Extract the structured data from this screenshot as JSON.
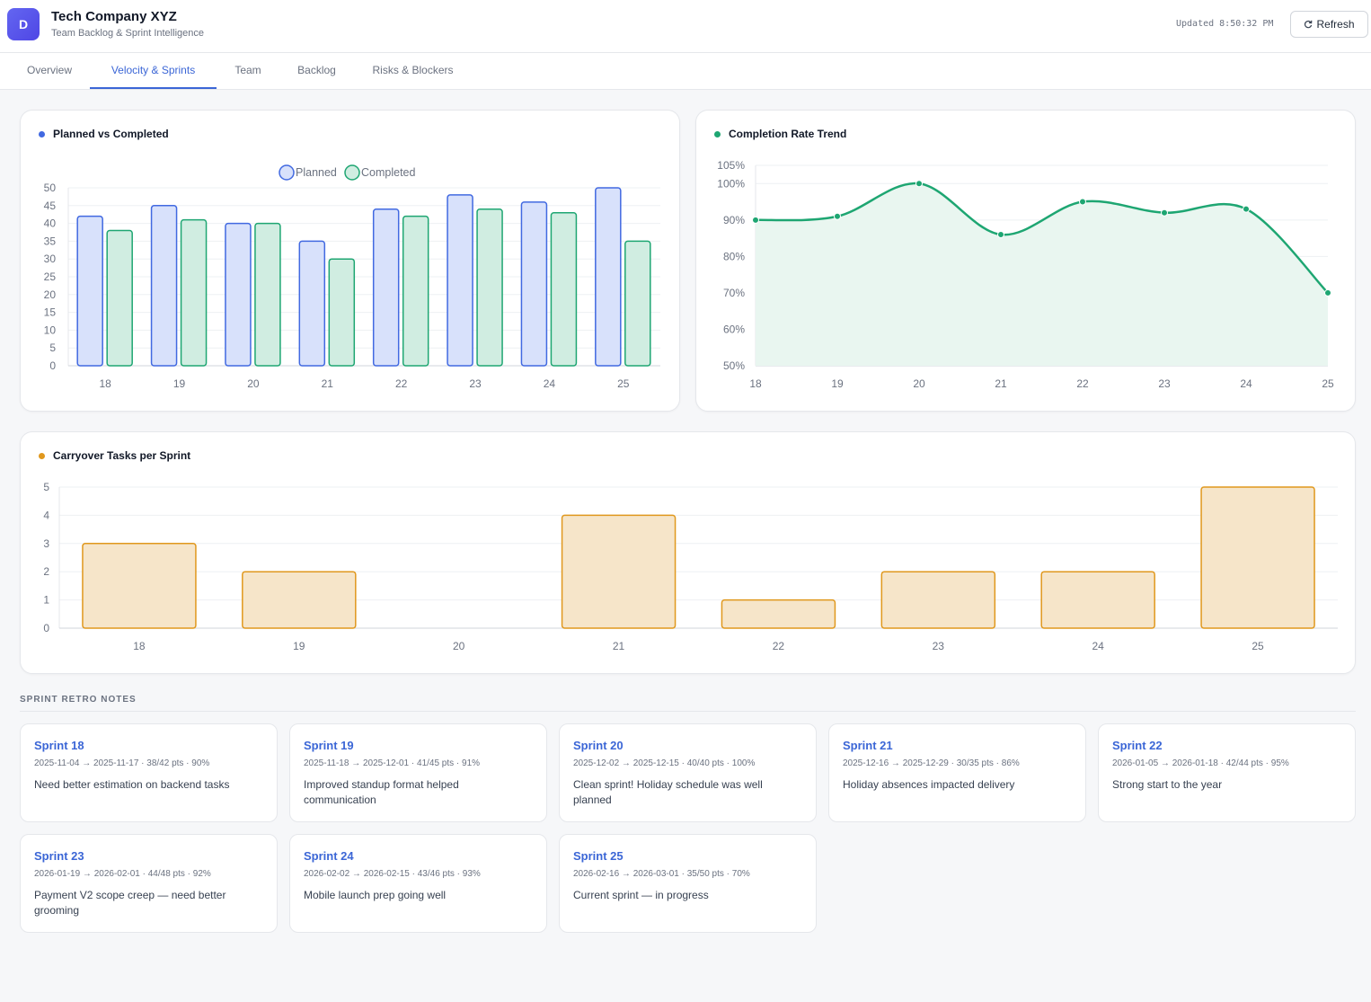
{
  "header": {
    "logo_letter": "D",
    "company": "Tech Company XYZ",
    "subtitle": "Team Backlog & Sprint Intelligence",
    "updated": "Updated 8:50:32 PM",
    "refresh_label": "Refresh",
    "refresh_icon": "refresh-icon"
  },
  "tabs": [
    {
      "label": "Overview",
      "active": false
    },
    {
      "label": "Velocity & Sprints",
      "active": true
    },
    {
      "label": "Team",
      "active": false
    },
    {
      "label": "Backlog",
      "active": false
    },
    {
      "label": "Risks & Blockers",
      "active": false
    }
  ],
  "colors": {
    "accent": "#3b66d6",
    "planned": "#4169e1",
    "completed": "#1ea672",
    "carryover": "#e0981d"
  },
  "chart_data": [
    {
      "type": "bar",
      "title": "Planned vs Completed",
      "categories": [
        "18",
        "19",
        "20",
        "21",
        "22",
        "23",
        "24",
        "25"
      ],
      "series": [
        {
          "name": "Planned",
          "values": [
            42,
            45,
            40,
            35,
            44,
            48,
            46,
            50
          ]
        },
        {
          "name": "Completed",
          "values": [
            38,
            41,
            40,
            30,
            42,
            44,
            43,
            35
          ]
        }
      ],
      "yticks": [
        0,
        5,
        10,
        15,
        20,
        25,
        30,
        35,
        40,
        45,
        50
      ],
      "ylim": [
        0,
        50
      ],
      "legend": "top-center",
      "grid": true
    },
    {
      "type": "area",
      "title": "Completion Rate Trend",
      "categories": [
        "18",
        "19",
        "20",
        "21",
        "22",
        "23",
        "24",
        "25"
      ],
      "values": [
        90,
        91,
        100,
        86,
        95,
        92,
        93,
        70
      ],
      "yticks": [
        "50%",
        "60%",
        "70%",
        "80%",
        "90%",
        "100%",
        "105%"
      ],
      "ylim": [
        50,
        105
      ],
      "grid": true
    },
    {
      "type": "bar",
      "title": "Carryover Tasks per Sprint",
      "categories": [
        "18",
        "19",
        "20",
        "21",
        "22",
        "23",
        "24",
        "25"
      ],
      "values": [
        3,
        2,
        0,
        4,
        1,
        2,
        2,
        5
      ],
      "yticks": [
        0,
        1,
        2,
        3,
        4,
        5
      ],
      "ylim": [
        0,
        5
      ],
      "grid": true
    }
  ],
  "retro": {
    "section_label": "SPRINT RETRO NOTES",
    "notes": [
      {
        "title": "Sprint 18",
        "meta": "2025-11-04 → 2025-11-17 · 38/42 pts · 90%",
        "text": "Need better estimation on backend tasks"
      },
      {
        "title": "Sprint 19",
        "meta": "2025-11-18 → 2025-12-01 · 41/45 pts · 91%",
        "text": "Improved standup format helped communication"
      },
      {
        "title": "Sprint 20",
        "meta": "2025-12-02 → 2025-12-15 · 40/40 pts · 100%",
        "text": "Clean sprint! Holiday schedule was well planned"
      },
      {
        "title": "Sprint 21",
        "meta": "2025-12-16 → 2025-12-29 · 30/35 pts · 86%",
        "text": "Holiday absences impacted delivery"
      },
      {
        "title": "Sprint 22",
        "meta": "2026-01-05 → 2026-01-18 · 42/44 pts · 95%",
        "text": "Strong start to the year"
      },
      {
        "title": "Sprint 23",
        "meta": "2026-01-19 → 2026-02-01 · 44/48 pts · 92%",
        "text": "Payment V2 scope creep — need better grooming"
      },
      {
        "title": "Sprint 24",
        "meta": "2026-02-02 → 2026-02-15 · 43/46 pts · 93%",
        "text": "Mobile launch prep going well"
      },
      {
        "title": "Sprint 25",
        "meta": "2026-02-16 → 2026-03-01 · 35/50 pts · 70%",
        "text": "Current sprint — in progress"
      }
    ]
  }
}
